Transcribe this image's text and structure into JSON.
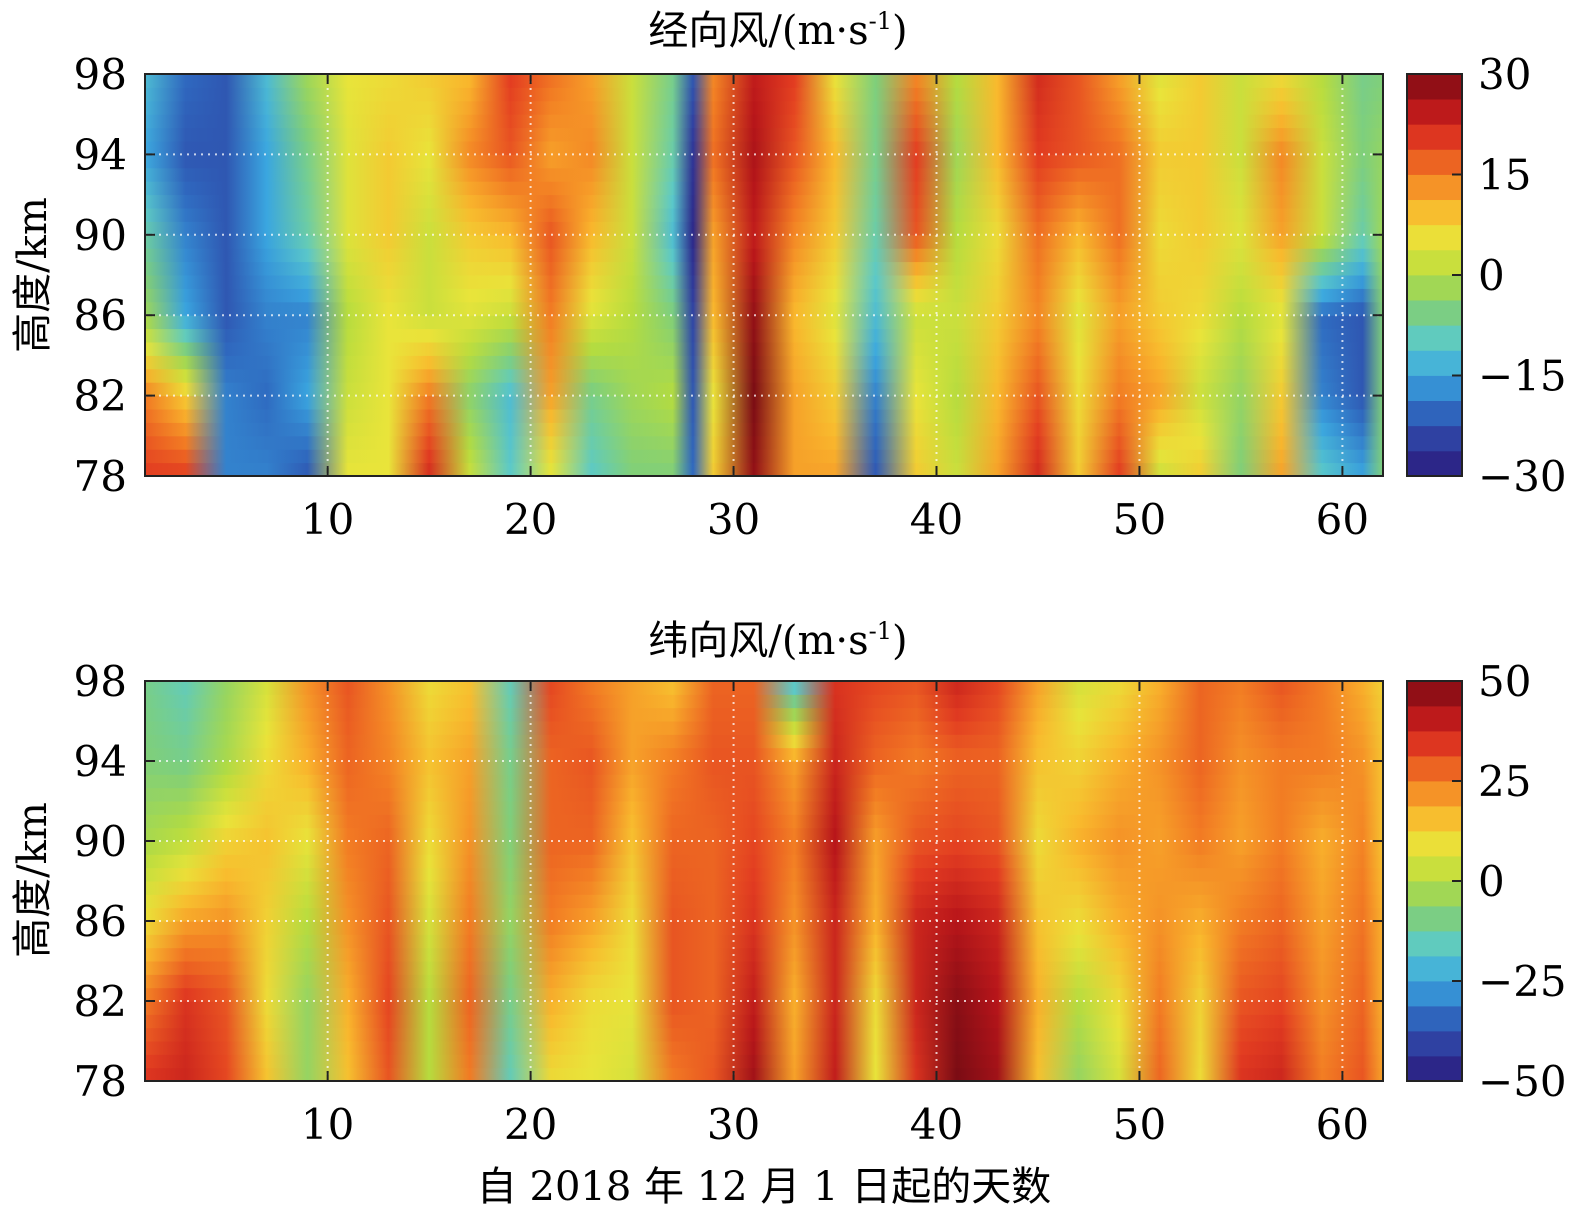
{
  "x_axis_label": "自 2018 年 12 月 1 日起的天数",
  "colormap": [
    "#2a1a7a",
    "#2f3b9e",
    "#2f6ac0",
    "#3aa6e0",
    "#5ccac8",
    "#7fcf7a",
    "#b6dc3e",
    "#e9e43a",
    "#f9b92d",
    "#f27c23",
    "#e23b21",
    "#b8151a",
    "#7a0c14"
  ],
  "chart_data": [
    {
      "type": "heatmap",
      "title": "经向风/(m·s-1)",
      "title_main": "经向风/(m·s",
      "title_sup": "-1",
      "title_end": ")",
      "ylabel": "高度/km",
      "xlabel": "",
      "xlim": [
        1,
        62
      ],
      "ylim": [
        78,
        98
      ],
      "xticks": [
        10,
        20,
        30,
        40,
        50,
        60
      ],
      "yticks": [
        78,
        82,
        86,
        90,
        94,
        98
      ],
      "x_tick_labels": [
        "10",
        "20",
        "30",
        "40",
        "50",
        "60"
      ],
      "y_tick_labels": [
        "78",
        "82",
        "86",
        "90",
        "94",
        "98"
      ],
      "colorbar": {
        "range": [
          -30,
          30
        ],
        "ticks": [
          -30,
          -15,
          0,
          15,
          30
        ],
        "tick_labels": [
          "−30",
          "−15",
          "0",
          "15",
          "30"
        ]
      },
      "grid": true,
      "heights": [
        78,
        82,
        86,
        90,
        94,
        98
      ],
      "days": [
        1,
        3,
        5,
        7,
        9,
        11,
        13,
        15,
        17,
        19,
        21,
        23,
        25,
        27,
        28,
        29,
        31,
        33,
        35,
        37,
        39,
        41,
        43,
        45,
        47,
        49,
        51,
        53,
        55,
        57,
        59,
        61,
        62
      ],
      "values": [
        [
          20,
          20,
          -18,
          -18,
          -22,
          5,
          5,
          22,
          2,
          -10,
          4,
          -10,
          -5,
          -5,
          -20,
          8,
          28,
          12,
          12,
          -22,
          8,
          2,
          12,
          22,
          8,
          20,
          2,
          8,
          -5,
          12,
          -10,
          -15,
          -5
        ],
        [
          15,
          8,
          -18,
          -20,
          -15,
          2,
          5,
          15,
          -4,
          -12,
          12,
          -6,
          -2,
          0,
          -22,
          5,
          30,
          12,
          8,
          -18,
          5,
          0,
          10,
          18,
          6,
          15,
          12,
          2,
          -3,
          8,
          -18,
          -22,
          -5
        ],
        [
          -2,
          -15,
          -22,
          -18,
          -18,
          0,
          5,
          2,
          4,
          2,
          15,
          4,
          0,
          -5,
          -24,
          10,
          28,
          10,
          4,
          -12,
          2,
          2,
          8,
          14,
          4,
          12,
          8,
          6,
          0,
          4,
          -20,
          -22,
          -5
        ],
        [
          -8,
          -18,
          -22,
          -15,
          -8,
          4,
          8,
          2,
          8,
          10,
          18,
          10,
          2,
          -12,
          -28,
          12,
          24,
          14,
          8,
          -8,
          18,
          0,
          6,
          16,
          10,
          16,
          6,
          8,
          4,
          12,
          2,
          -8,
          -2
        ],
        [
          -15,
          -22,
          -22,
          -15,
          -6,
          4,
          8,
          5,
          14,
          18,
          12,
          14,
          2,
          -8,
          -26,
          16,
          26,
          18,
          10,
          -6,
          20,
          -2,
          10,
          20,
          18,
          16,
          8,
          8,
          2,
          14,
          2,
          -5,
          -3
        ],
        [
          -12,
          -20,
          -22,
          -12,
          -2,
          5,
          6,
          8,
          10,
          20,
          16,
          12,
          2,
          -6,
          -22,
          14,
          24,
          20,
          5,
          -5,
          14,
          0,
          10,
          22,
          18,
          12,
          4,
          8,
          2,
          6,
          0,
          -6,
          -5
        ]
      ]
    },
    {
      "type": "heatmap",
      "title": "纬向风/(m·s-1)",
      "title_main": "纬向风/(m·s",
      "title_sup": "-1",
      "title_end": ")",
      "ylabel": "高度/km",
      "xlabel": "自 2018 年 12 月 1 日起的天数",
      "xlim": [
        1,
        62
      ],
      "ylim": [
        78,
        98
      ],
      "xticks": [
        10,
        20,
        30,
        40,
        50,
        60
      ],
      "yticks": [
        78,
        82,
        86,
        90,
        94,
        98
      ],
      "x_tick_labels": [
        "10",
        "20",
        "30",
        "40",
        "50",
        "60"
      ],
      "y_tick_labels": [
        "78",
        "82",
        "86",
        "90",
        "94",
        "98"
      ],
      "colorbar": {
        "range": [
          -50,
          50
        ],
        "ticks": [
          -50,
          -25,
          0,
          25,
          50
        ],
        "tick_labels": [
          "−50",
          "−25",
          "0",
          "25",
          "50"
        ]
      },
      "grid": true,
      "heights": [
        78,
        82,
        86,
        90,
        94,
        98
      ],
      "days": [
        1,
        3,
        5,
        7,
        9,
        11,
        13,
        15,
        17,
        19,
        21,
        23,
        25,
        27,
        29,
        31,
        33,
        35,
        37,
        39,
        41,
        43,
        45,
        47,
        49,
        51,
        53,
        55,
        57,
        59,
        61,
        62
      ],
      "values": [
        [
          35,
          38,
          32,
          15,
          -5,
          15,
          30,
          0,
          25,
          -15,
          10,
          8,
          5,
          25,
          30,
          45,
          20,
          40,
          8,
          35,
          50,
          45,
          15,
          -5,
          5,
          28,
          10,
          35,
          38,
          25,
          30,
          20
        ],
        [
          25,
          35,
          30,
          10,
          -5,
          18,
          32,
          0,
          28,
          -10,
          18,
          10,
          8,
          30,
          28,
          40,
          18,
          38,
          10,
          38,
          48,
          42,
          18,
          0,
          10,
          25,
          12,
          30,
          32,
          22,
          28,
          18
        ],
        [
          10,
          20,
          22,
          12,
          0,
          22,
          30,
          5,
          25,
          -5,
          25,
          20,
          10,
          30,
          28,
          35,
          22,
          38,
          18,
          38,
          42,
          38,
          15,
          10,
          18,
          22,
          18,
          25,
          28,
          20,
          26,
          18
        ],
        [
          -2,
          2,
          12,
          15,
          8,
          25,
          28,
          10,
          22,
          -8,
          28,
          28,
          15,
          28,
          28,
          32,
          25,
          42,
          20,
          30,
          32,
          30,
          10,
          18,
          22,
          20,
          25,
          20,
          25,
          18,
          24,
          15
        ],
        [
          -8,
          -10,
          -2,
          10,
          18,
          28,
          24,
          15,
          20,
          -10,
          28,
          30,
          20,
          25,
          30,
          30,
          20,
          38,
          28,
          25,
          28,
          28,
          15,
          12,
          18,
          22,
          28,
          22,
          25,
          25,
          22,
          15
        ],
        [
          -10,
          -15,
          -5,
          5,
          22,
          30,
          22,
          10,
          15,
          -15,
          32,
          25,
          20,
          15,
          28,
          28,
          -20,
          35,
          32,
          30,
          38,
          32,
          20,
          5,
          10,
          18,
          28,
          25,
          30,
          25,
          18,
          12
        ]
      ]
    }
  ]
}
